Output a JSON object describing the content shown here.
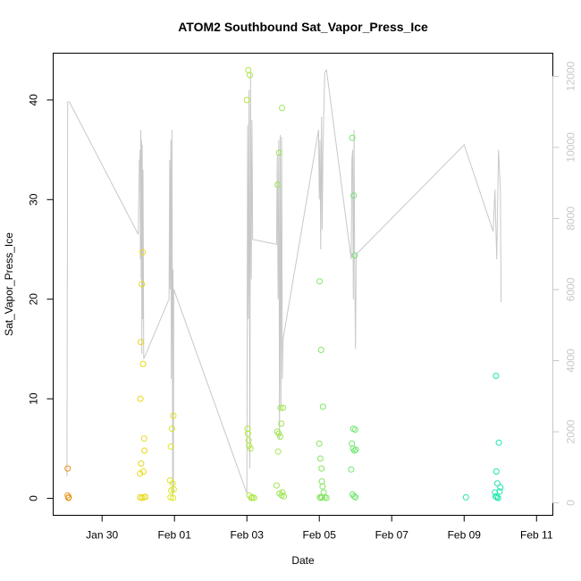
{
  "chart_data": {
    "type": "scatter",
    "title": "ATOM2 Southbound Sat_Vapor_Press_Ice",
    "xlabel": "Date",
    "ylabel": "Sat_Vapor_Press_Ice",
    "x_ticks": [
      "Jan 30",
      "Feb 01",
      "Feb 03",
      "Feb 05",
      "Feb 07",
      "Feb 09",
      "Feb 11"
    ],
    "x_tick_days": [
      0,
      2,
      4,
      6,
      8,
      10,
      12
    ],
    "xlim": [
      -1.35,
      12.45
    ],
    "y_ticks": [
      0,
      10,
      20,
      30,
      40
    ],
    "ylim": [
      -1.7,
      44.7
    ],
    "y2_ticks": [
      0,
      2000,
      4000,
      6000,
      8000,
      10000,
      12000
    ],
    "y2lim": [
      -350,
      12650
    ],
    "grid": false,
    "colors": {
      "points_start": "#e8901a",
      "points_mid": "#e6e61a",
      "points_end": "#1ae6b0",
      "secondary_line": "#c8c8c8"
    },
    "series": [
      {
        "points": [
          {
            "x": -0.95,
            "y": 3.0
          },
          {
            "x": -0.95,
            "y": 0.3
          },
          {
            "x": -0.93,
            "y": 0.05
          },
          {
            "x": -0.92,
            "y": 0.1
          },
          {
            "x": 1.05,
            "y": 0.1
          },
          {
            "x": 1.05,
            "y": 2.5
          },
          {
            "x": 1.06,
            "y": 10.0
          },
          {
            "x": 1.07,
            "y": 15.7
          },
          {
            "x": 1.08,
            "y": 3.5
          },
          {
            "x": 1.1,
            "y": 21.5
          },
          {
            "x": 1.1,
            "y": 0.05
          },
          {
            "x": 1.12,
            "y": 24.7
          },
          {
            "x": 1.13,
            "y": 13.5
          },
          {
            "x": 1.14,
            "y": 2.7
          },
          {
            "x": 1.15,
            "y": 0.1
          },
          {
            "x": 1.16,
            "y": 6.0
          },
          {
            "x": 1.17,
            "y": 4.8
          },
          {
            "x": 1.2,
            "y": 0.15
          },
          {
            "x": 1.88,
            "y": 1.8
          },
          {
            "x": 1.89,
            "y": 0.1
          },
          {
            "x": 1.9,
            "y": 5.2
          },
          {
            "x": 1.91,
            "y": 0.8
          },
          {
            "x": 1.93,
            "y": 7.0
          },
          {
            "x": 1.95,
            "y": 1.5
          },
          {
            "x": 1.96,
            "y": 0.05
          },
          {
            "x": 1.97,
            "y": 8.3
          },
          {
            "x": 1.98,
            "y": 0.9
          },
          {
            "x": 4.0,
            "y": 40.0
          },
          {
            "x": 4.04,
            "y": 43.0
          },
          {
            "x": 4.08,
            "y": 42.5
          },
          {
            "x": 4.02,
            "y": 7.0
          },
          {
            "x": 4.03,
            "y": 6.5
          },
          {
            "x": 4.05,
            "y": 5.8
          },
          {
            "x": 4.06,
            "y": 5.3
          },
          {
            "x": 4.07,
            "y": 0.3
          },
          {
            "x": 4.1,
            "y": 5.0
          },
          {
            "x": 4.12,
            "y": 0.05
          },
          {
            "x": 4.15,
            "y": 0.1
          },
          {
            "x": 4.2,
            "y": 0.05
          },
          {
            "x": 4.82,
            "y": 1.3
          },
          {
            "x": 4.84,
            "y": 6.7
          },
          {
            "x": 4.85,
            "y": 31.5
          },
          {
            "x": 4.86,
            "y": 4.7
          },
          {
            "x": 4.88,
            "y": 6.5
          },
          {
            "x": 4.89,
            "y": 34.7
          },
          {
            "x": 4.9,
            "y": 0.5
          },
          {
            "x": 4.92,
            "y": 6.2
          },
          {
            "x": 4.93,
            "y": 9.1
          },
          {
            "x": 4.95,
            "y": 7.5
          },
          {
            "x": 4.96,
            "y": 0.3
          },
          {
            "x": 4.97,
            "y": 39.2
          },
          {
            "x": 4.98,
            "y": 0.6
          },
          {
            "x": 5.0,
            "y": 9.1
          },
          {
            "x": 5.02,
            "y": 0.2
          },
          {
            "x": 6.0,
            "y": 5.5
          },
          {
            "x": 6.01,
            "y": 21.8
          },
          {
            "x": 6.02,
            "y": 0.1
          },
          {
            "x": 6.03,
            "y": 4.0
          },
          {
            "x": 6.04,
            "y": 0.05
          },
          {
            "x": 6.05,
            "y": 14.9
          },
          {
            "x": 6.06,
            "y": 3.0
          },
          {
            "x": 6.07,
            "y": 1.7
          },
          {
            "x": 6.08,
            "y": 0.1
          },
          {
            "x": 6.09,
            "y": 1.2
          },
          {
            "x": 6.1,
            "y": 9.2
          },
          {
            "x": 6.12,
            "y": 0.6
          },
          {
            "x": 6.15,
            "y": 0.1
          },
          {
            "x": 6.2,
            "y": 0.05
          },
          {
            "x": 6.88,
            "y": 2.9
          },
          {
            "x": 6.9,
            "y": 5.5
          },
          {
            "x": 6.91,
            "y": 36.2
          },
          {
            "x": 6.92,
            "y": 0.4
          },
          {
            "x": 6.93,
            "y": 5.0
          },
          {
            "x": 6.94,
            "y": 7.0
          },
          {
            "x": 6.95,
            "y": 30.4
          },
          {
            "x": 6.96,
            "y": 0.2
          },
          {
            "x": 6.97,
            "y": 4.8
          },
          {
            "x": 6.98,
            "y": 24.4
          },
          {
            "x": 6.99,
            "y": 6.9
          },
          {
            "x": 7.0,
            "y": 0.1
          },
          {
            "x": 7.01,
            "y": 4.9
          },
          {
            "x": 10.05,
            "y": 0.1
          },
          {
            "x": 10.85,
            "y": 0.6
          },
          {
            "x": 10.87,
            "y": 0.2
          },
          {
            "x": 10.88,
            "y": 12.3
          },
          {
            "x": 10.89,
            "y": 2.7
          },
          {
            "x": 10.9,
            "y": 0.1
          },
          {
            "x": 10.92,
            "y": 1.5
          },
          {
            "x": 10.94,
            "y": 0.05
          },
          {
            "x": 10.96,
            "y": 5.6
          },
          {
            "x": 10.98,
            "y": 0.7
          },
          {
            "x": 11.0,
            "y": 1.1
          }
        ]
      }
    ],
    "secondary_series": [
      {
        "axis": "right",
        "points": [
          [
            -0.97,
            2.2
          ],
          [
            -0.95,
            39.8
          ],
          [
            -0.9,
            39.8
          ],
          [
            1.0,
            26.5
          ],
          [
            1.03,
            34.0
          ],
          [
            1.04,
            33.0
          ],
          [
            1.05,
            35.0
          ],
          [
            1.06,
            24.0
          ],
          [
            1.07,
            37.0
          ],
          [
            1.08,
            22.0
          ],
          [
            1.09,
            36.0
          ],
          [
            1.1,
            14.5
          ],
          [
            1.11,
            35.5
          ],
          [
            1.12,
            18.0
          ],
          [
            1.13,
            33.0
          ],
          [
            1.14,
            24.0
          ],
          [
            1.15,
            14.0
          ],
          [
            1.85,
            20.0
          ],
          [
            1.87,
            34.0
          ],
          [
            1.88,
            21.0
          ],
          [
            1.9,
            36.0
          ],
          [
            1.91,
            12.0
          ],
          [
            1.93,
            37.0
          ],
          [
            1.95,
            0.1
          ],
          [
            1.96,
            23.0
          ],
          [
            1.97,
            0.5
          ],
          [
            1.98,
            21.0
          ],
          [
            4.0,
            0.5
          ],
          [
            4.02,
            37.5
          ],
          [
            4.04,
            18.0
          ],
          [
            4.06,
            41.0
          ],
          [
            4.08,
            3.0
          ],
          [
            4.1,
            42.8
          ],
          [
            4.12,
            22.0
          ],
          [
            4.14,
            38.0
          ],
          [
            4.16,
            26.0
          ],
          [
            4.82,
            25.5
          ],
          [
            4.84,
            34.5
          ],
          [
            4.86,
            20.0
          ],
          [
            4.88,
            36.0
          ],
          [
            4.9,
            6.0
          ],
          [
            4.92,
            36.5
          ],
          [
            4.94,
            9.0
          ],
          [
            4.96,
            36.3
          ],
          [
            4.98,
            12.0
          ],
          [
            5.0,
            16.0
          ],
          [
            5.98,
            37.0
          ],
          [
            6.0,
            30.0
          ],
          [
            6.02,
            36.0
          ],
          [
            6.04,
            25.0
          ],
          [
            6.06,
            38.3
          ],
          [
            6.08,
            27.0
          ],
          [
            6.1,
            35.0
          ],
          [
            6.15,
            42.8
          ],
          [
            6.2,
            43.0
          ],
          [
            6.88,
            24.0
          ],
          [
            6.9,
            34.0
          ],
          [
            6.92,
            35.0
          ],
          [
            6.94,
            20.0
          ],
          [
            6.96,
            37.0
          ],
          [
            6.98,
            22.0
          ],
          [
            7.0,
            15.0
          ],
          [
            7.02,
            24.5
          ],
          [
            10.0,
            35.5
          ],
          [
            10.8,
            26.8
          ],
          [
            10.85,
            31.0
          ],
          [
            10.9,
            24.0
          ],
          [
            10.95,
            35.0
          ],
          [
            11.0,
            31.0
          ],
          [
            11.02,
            19.7
          ]
        ]
      }
    ]
  }
}
